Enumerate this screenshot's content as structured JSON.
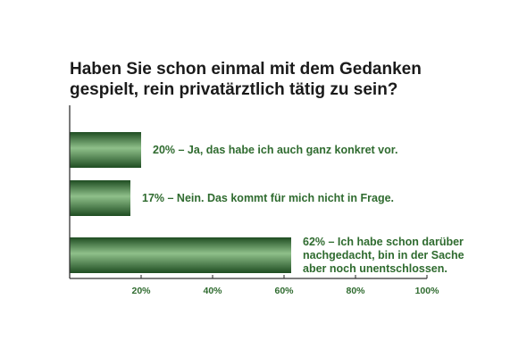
{
  "chart_data": {
    "type": "bar",
    "orientation": "horizontal",
    "title_lines": [
      "Haben Sie schon einmal mit dem Gedanken",
      "gespielt, rein privatärztlich tätig zu sein?"
    ],
    "categories": [
      [
        "20% – Ja, das habe ich auch ganz konkret vor."
      ],
      [
        "17% – Nein. Das kommt für mich nicht in Frage."
      ],
      [
        "62% – Ich habe schon darüber",
        "nachgedacht, bin in der Sache",
        "aber noch unentschlossen."
      ]
    ],
    "values": [
      20,
      17,
      62
    ],
    "xlim": [
      0,
      100
    ],
    "ticks": [
      20,
      40,
      60,
      80,
      100
    ],
    "tick_labels": [
      "20%",
      "40%",
      "60%",
      "80%",
      "100%"
    ],
    "grid": false,
    "colors": {
      "bar_dark": "#1f4d22",
      "bar_light": "#8fc08a",
      "label": "#2f6b2f",
      "axis": "#333333"
    }
  }
}
